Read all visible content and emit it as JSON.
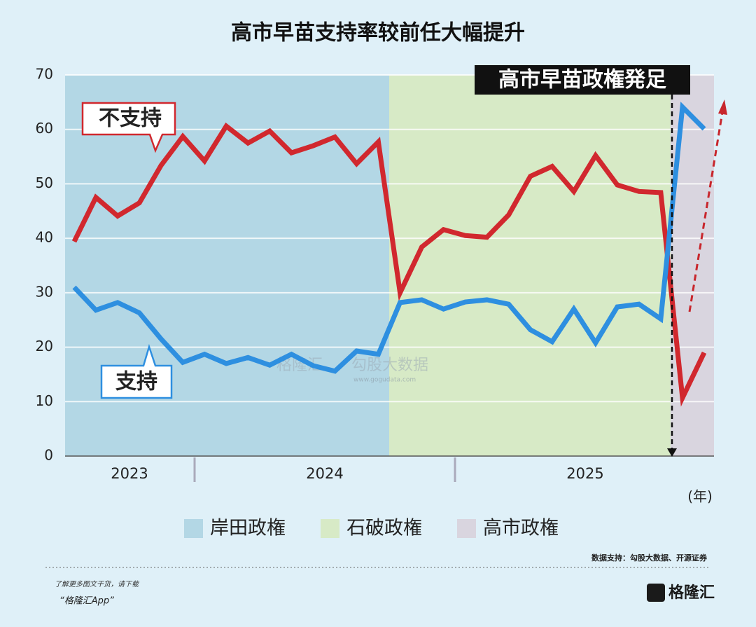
{
  "chart_data": {
    "type": "line",
    "title": "高市早苗支持率较前任大幅提升",
    "categories": [
      null,
      null,
      null,
      null,
      null,
      null,
      null,
      null,
      null,
      null,
      null,
      null,
      null,
      null,
      null,
      null,
      null,
      null,
      null,
      null,
      null,
      null,
      null,
      null,
      null,
      null,
      null,
      null,
      null,
      null
    ],
    "year_labels": [
      "2023",
      "2024",
      "2025"
    ],
    "x_unit": "(年)",
    "series": [
      {
        "name": "不支持",
        "color": "#d1282e",
        "values": [
          39.4,
          47.5,
          44.1,
          46.5,
          53.4,
          58.7,
          54.2,
          60.6,
          57.5,
          59.7,
          55.7,
          57.0,
          58.6,
          53.7,
          57.7,
          30.0,
          38.4,
          41.6,
          40.5,
          40.2,
          44.3,
          51.4,
          53.2,
          48.6,
          55.2,
          49.8,
          48.6,
          48.4,
          10.7,
          19.0
        ]
      },
      {
        "name": "支持",
        "color": "#2e8fe0",
        "values": [
          31.0,
          26.8,
          28.2,
          26.3,
          21.5,
          17.2,
          18.7,
          17.0,
          18.1,
          16.7,
          18.7,
          16.6,
          15.6,
          19.3,
          18.7,
          28.2,
          28.7,
          27.0,
          28.3,
          28.7,
          27.9,
          23.2,
          21.0,
          27.0,
          20.8,
          27.4,
          27.9,
          25.2,
          64.1,
          60.1
        ]
      }
    ],
    "periods": [
      {
        "name": "岸田政権",
        "color": "#b3d7e5"
      },
      {
        "name": "石破政権",
        "color": "#d7eac6"
      },
      {
        "name": "高市政権",
        "color": "#d9d5df"
      }
    ],
    "annotation": "高市早苗政権発足",
    "ylim": [
      0,
      70
    ],
    "yticks": [
      0,
      10,
      20,
      30,
      40,
      50,
      60,
      70
    ],
    "grid": true,
    "source": "数据支持：勾股大数据、开源证券",
    "watermark": [
      "格隆汇",
      "勾股大数据",
      "www.gogudata.com"
    ]
  },
  "footer": {
    "line1": "了解更多图文干货，请下载",
    "line2": "“格隆汇App”",
    "logo": "格隆汇"
  }
}
